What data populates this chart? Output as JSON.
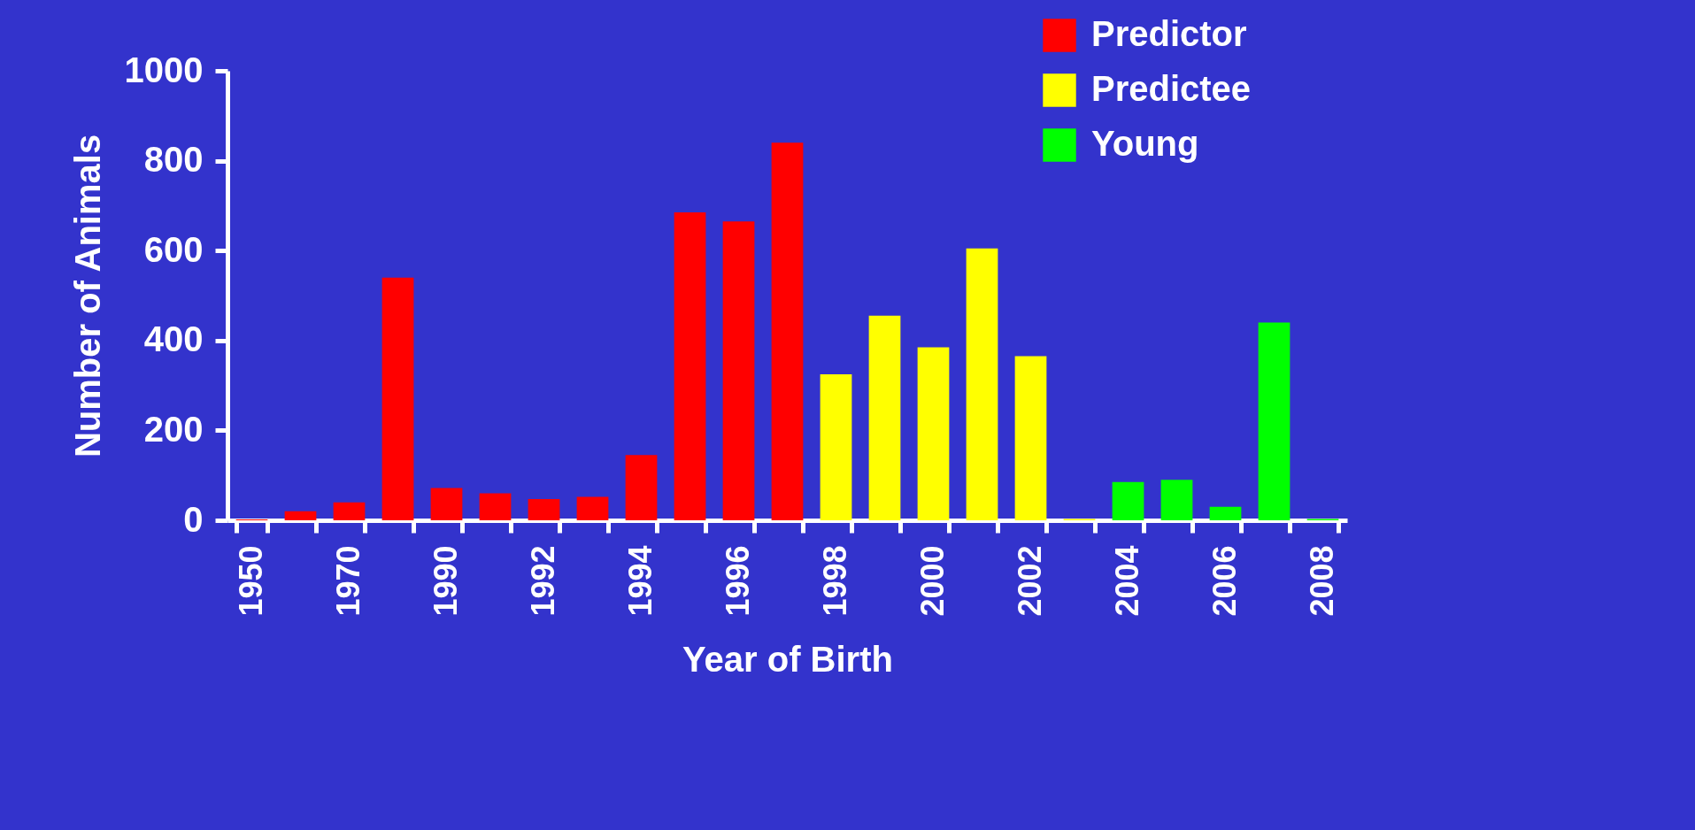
{
  "chart_data": {
    "type": "bar",
    "xlabel": "Year of Birth",
    "ylabel": "Number of Animals",
    "categories": [
      "1950",
      null,
      "1970",
      null,
      "1990",
      null,
      "1992",
      null,
      "1994",
      null,
      "1996",
      null,
      "1998",
      null,
      "2000",
      null,
      "2002",
      null,
      "2004",
      null,
      "2006",
      null,
      "2008"
    ],
    "series": [
      {
        "name": "Predictor",
        "color": "#ff0000",
        "values": [
          2,
          20,
          40,
          540,
          72,
          60,
          47,
          52,
          145,
          685,
          665,
          840,
          null,
          null,
          null,
          null,
          null,
          null,
          null,
          null,
          null,
          null,
          null
        ]
      },
      {
        "name": "Predictee",
        "color": "#ffff00",
        "values": [
          null,
          null,
          null,
          null,
          null,
          null,
          null,
          null,
          null,
          null,
          null,
          null,
          325,
          455,
          385,
          605,
          365,
          3,
          null,
          null,
          null,
          null,
          null
        ]
      },
      {
        "name": "Young",
        "color": "#00ff00",
        "values": [
          null,
          null,
          null,
          null,
          null,
          null,
          null,
          null,
          null,
          null,
          null,
          null,
          null,
          null,
          null,
          null,
          null,
          null,
          85,
          90,
          30,
          440,
          3
        ]
      }
    ],
    "ylim": [
      0,
      1000
    ],
    "yticks": [
      0,
      200,
      400,
      600,
      800,
      1000
    ],
    "grid": false,
    "legend": "top right"
  }
}
